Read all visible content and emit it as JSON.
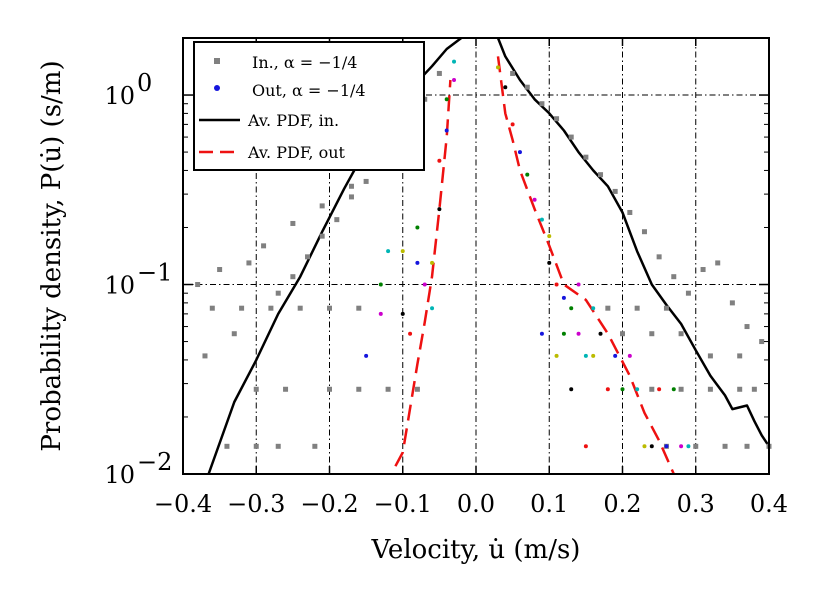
{
  "chart_data": {
    "type": "scatter",
    "title": "",
    "xlabel": "Velocity, u̇ (m/s)",
    "ylabel": "Probability density, P(u̇) (s/m)",
    "xlim": [
      -0.4,
      0.4
    ],
    "ylim": [
      0.01,
      2.0
    ],
    "yscale": "log",
    "grid": true,
    "legend_position": "top-left",
    "x_ticks": [
      -0.4,
      -0.3,
      -0.2,
      -0.1,
      0.0,
      0.1,
      0.2,
      0.3,
      0.4
    ],
    "x_tick_labels": [
      "−0.4",
      "−0.3",
      "−0.2",
      "−0.1",
      "0.0",
      "0.1",
      "0.2",
      "0.3",
      "0.4"
    ],
    "y_ticks": [
      {
        "value": 1.0,
        "base": "10",
        "exp": "0"
      },
      {
        "value": 0.1,
        "base": "10",
        "exp": "−1"
      },
      {
        "value": 0.01,
        "base": "10",
        "exp": "−2"
      }
    ],
    "legend": [
      {
        "key": "in_points",
        "label": "In., α = −1/4",
        "color": "#808080",
        "marker": "square"
      },
      {
        "key": "out_points",
        "label": "Out, α = −1/4",
        "color": "#1515dd",
        "marker": "dot"
      },
      {
        "key": "avg_in",
        "label": "Av. PDF, in.",
        "color": "#000000",
        "style": "solid"
      },
      {
        "key": "avg_out",
        "label": "Av. PDF, out",
        "color": "#ee1111",
        "style": "dashed"
      }
    ],
    "series": [
      {
        "name": "Av. PDF, in.",
        "color": "#000000",
        "style": "solid",
        "x": [
          -0.365,
          -0.33,
          -0.3,
          -0.27,
          -0.24,
          -0.21,
          -0.18,
          -0.15,
          -0.12,
          -0.09,
          -0.06,
          -0.04,
          -0.02
        ],
        "y": [
          0.01,
          0.024,
          0.04,
          0.07,
          0.11,
          0.19,
          0.32,
          0.52,
          0.78,
          1.07,
          1.42,
          1.75,
          2.0
        ]
      },
      {
        "name": "Av. PDF, in. (positive)",
        "color": "#000000",
        "style": "solid",
        "x": [
          0.03,
          0.04,
          0.06,
          0.08,
          0.1,
          0.12,
          0.14,
          0.16,
          0.18,
          0.2,
          0.22,
          0.24,
          0.26,
          0.28,
          0.3,
          0.32,
          0.34,
          0.35,
          0.37,
          0.38,
          0.39,
          0.4
        ],
        "y": [
          2.0,
          1.6,
          1.2,
          0.95,
          0.8,
          0.65,
          0.5,
          0.4,
          0.33,
          0.24,
          0.15,
          0.1,
          0.078,
          0.062,
          0.045,
          0.033,
          0.026,
          0.022,
          0.023,
          0.019,
          0.016,
          0.014
        ]
      },
      {
        "name": "Av. PDF, out",
        "color": "#ee1111",
        "style": "dashed",
        "x": [
          -0.11,
          -0.1,
          -0.08,
          -0.07,
          -0.06,
          -0.05,
          -0.04,
          -0.035
        ],
        "y": [
          0.011,
          0.013,
          0.038,
          0.063,
          0.11,
          0.25,
          0.6,
          1.2
        ]
      },
      {
        "name": "Av. PDF, out (positive)",
        "color": "#ee1111",
        "style": "dashed",
        "x": [
          0.03,
          0.04,
          0.05,
          0.06,
          0.08,
          0.1,
          0.12,
          0.15,
          0.18,
          0.21,
          0.23,
          0.25,
          0.27
        ],
        "y": [
          1.6,
          0.8,
          0.58,
          0.4,
          0.25,
          0.16,
          0.1,
          0.083,
          0.055,
          0.033,
          0.021,
          0.015,
          0.01
        ]
      }
    ],
    "scatter_in": {
      "name": "In., α = −1/4",
      "color": "#808080",
      "points": [
        [
          -0.37,
          0.042
        ],
        [
          -0.33,
          0.055
        ],
        [
          -0.27,
          0.09
        ],
        [
          -0.25,
          0.11
        ],
        [
          -0.23,
          0.14
        ],
        [
          -0.21,
          0.18
        ],
        [
          -0.19,
          0.22
        ],
        [
          -0.17,
          0.29
        ],
        [
          -0.15,
          0.35
        ],
        [
          -0.13,
          0.42
        ],
        [
          -0.11,
          0.55
        ],
        [
          -0.09,
          0.7
        ],
        [
          -0.07,
          0.95
        ],
        [
          -0.05,
          1.3
        ],
        [
          -0.3,
          0.028
        ],
        [
          -0.26,
          0.028
        ],
        [
          -0.2,
          0.028
        ],
        [
          -0.16,
          0.028
        ],
        [
          -0.12,
          0.028
        ],
        [
          -0.08,
          0.028
        ],
        [
          -0.34,
          0.014
        ],
        [
          -0.3,
          0.014
        ],
        [
          -0.27,
          0.014
        ],
        [
          -0.22,
          0.014
        ],
        [
          -0.36,
          0.075
        ],
        [
          -0.32,
          0.075
        ],
        [
          -0.28,
          0.075
        ],
        [
          -0.24,
          0.075
        ],
        [
          -0.2,
          0.075
        ],
        [
          -0.16,
          0.075
        ],
        [
          -0.38,
          0.1
        ],
        [
          -0.35,
          0.12
        ],
        [
          -0.31,
          0.13
        ],
        [
          -0.29,
          0.16
        ],
        [
          -0.25,
          0.21
        ],
        [
          -0.21,
          0.26
        ],
        [
          -0.17,
          0.33
        ],
        [
          -0.13,
          0.5
        ],
        [
          0.05,
          1.3
        ],
        [
          0.07,
          1.1
        ],
        [
          0.09,
          0.9
        ],
        [
          0.11,
          0.75
        ],
        [
          0.13,
          0.6
        ],
        [
          0.15,
          0.47
        ],
        [
          0.17,
          0.38
        ],
        [
          0.19,
          0.31
        ],
        [
          0.21,
          0.24
        ],
        [
          0.23,
          0.19
        ],
        [
          0.25,
          0.14
        ],
        [
          0.27,
          0.11
        ],
        [
          0.29,
          0.09
        ],
        [
          0.31,
          0.12
        ],
        [
          0.33,
          0.13
        ],
        [
          0.35,
          0.08
        ],
        [
          0.37,
          0.06
        ],
        [
          0.39,
          0.05
        ],
        [
          0.24,
          0.028
        ],
        [
          0.28,
          0.028
        ],
        [
          0.32,
          0.028
        ],
        [
          0.36,
          0.028
        ],
        [
          0.38,
          0.028
        ],
        [
          0.26,
          0.014
        ],
        [
          0.3,
          0.014
        ],
        [
          0.34,
          0.014
        ],
        [
          0.37,
          0.014
        ],
        [
          0.4,
          0.014
        ],
        [
          0.2,
          0.055
        ],
        [
          0.24,
          0.055
        ],
        [
          0.28,
          0.055
        ],
        [
          0.32,
          0.042
        ],
        [
          0.36,
          0.042
        ],
        [
          0.18,
          0.075
        ],
        [
          0.22,
          0.075
        ],
        [
          0.26,
          0.075
        ]
      ]
    },
    "scatter_out": {
      "name": "Out, α = −1/4",
      "colors": [
        "#1515dd",
        "#008000",
        "#cc00cc",
        "#00b5b5",
        "#bbbb00",
        "#000000",
        "#ee1111"
      ],
      "points": [
        [
          -0.15,
          0.042
        ],
        [
          -0.13,
          0.1
        ],
        [
          -0.13,
          0.07
        ],
        [
          -0.12,
          0.15
        ],
        [
          -0.1,
          0.15
        ],
        [
          -0.1,
          0.07
        ],
        [
          -0.09,
          0.055
        ],
        [
          -0.08,
          0.13
        ],
        [
          -0.08,
          0.2
        ],
        [
          -0.07,
          0.1
        ],
        [
          -0.06,
          0.075
        ],
        [
          -0.06,
          0.13
        ],
        [
          -0.05,
          0.25
        ],
        [
          -0.05,
          0.45
        ],
        [
          -0.04,
          0.65
        ],
        [
          -0.04,
          0.95
        ],
        [
          -0.03,
          1.2
        ],
        [
          -0.03,
          1.5
        ],
        [
          0.03,
          1.4
        ],
        [
          0.04,
          1.1
        ],
        [
          0.05,
          0.7
        ],
        [
          0.06,
          0.5
        ],
        [
          0.07,
          0.38
        ],
        [
          0.08,
          0.28
        ],
        [
          0.09,
          0.22
        ],
        [
          0.1,
          0.18
        ],
        [
          0.1,
          0.13
        ],
        [
          0.11,
          0.1
        ],
        [
          0.12,
          0.085
        ],
        [
          0.13,
          0.075
        ],
        [
          0.14,
          0.055
        ],
        [
          0.15,
          0.042
        ],
        [
          0.16,
          0.042
        ],
        [
          0.17,
          0.055
        ],
        [
          0.18,
          0.028
        ],
        [
          0.19,
          0.042
        ],
        [
          0.2,
          0.028
        ],
        [
          0.21,
          0.042
        ],
        [
          0.22,
          0.028
        ],
        [
          0.23,
          0.014
        ],
        [
          0.24,
          0.014
        ],
        [
          0.25,
          0.028
        ],
        [
          0.26,
          0.014
        ],
        [
          0.27,
          0.028
        ],
        [
          0.28,
          0.014
        ],
        [
          0.29,
          0.014
        ],
        [
          0.11,
          0.042
        ],
        [
          0.13,
          0.028
        ],
        [
          0.15,
          0.014
        ],
        [
          0.09,
          0.055
        ],
        [
          0.12,
          0.055
        ],
        [
          0.14,
          0.1
        ],
        [
          0.16,
          0.075
        ]
      ]
    }
  }
}
